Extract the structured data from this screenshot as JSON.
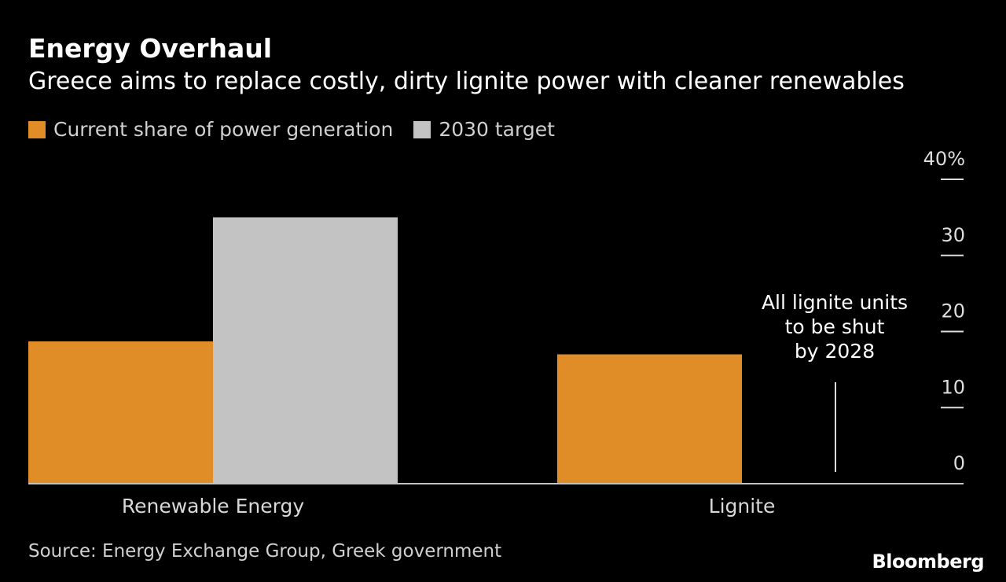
{
  "chart_data": {
    "type": "bar",
    "title": "Energy Overhaul",
    "subtitle": "Greece aims to replace costly, dirty lignite power with cleaner renewables",
    "categories": [
      "Renewable Energy",
      "Lignite"
    ],
    "series": [
      {
        "name": "Current share of power generation",
        "color": "#e08d28",
        "values": [
          18.7,
          17
        ]
      },
      {
        "name": "2030 target",
        "color": "#c3c3c3",
        "values": [
          35,
          0
        ]
      }
    ],
    "ylim": [
      0,
      40
    ],
    "yticks": [
      0,
      10,
      20,
      30,
      40
    ],
    "ytick_labels": [
      "0",
      "10",
      "20",
      "30",
      "40%"
    ],
    "axis_position": "right",
    "legend_placement": "top-left",
    "annotation": {
      "lines": [
        "All lignite units",
        "to be shut",
        "by 2028"
      ]
    },
    "source": "Source: Energy Exchange Group, Greek government",
    "brand": "Bloomberg"
  }
}
